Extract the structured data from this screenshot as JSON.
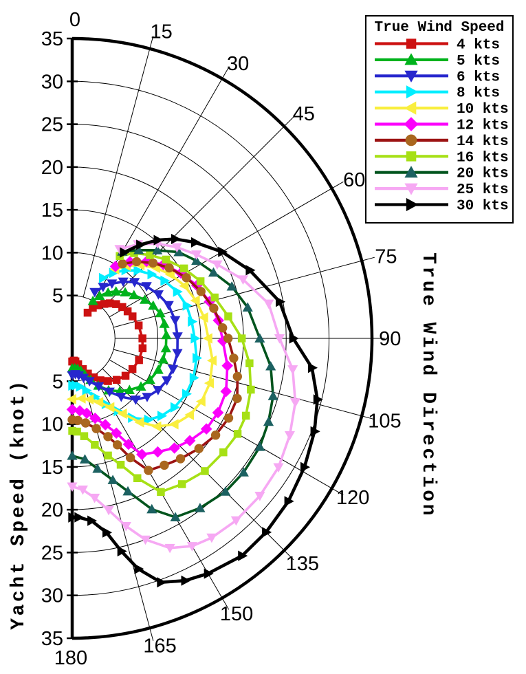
{
  "legend": {
    "title": "True Wind Speed",
    "position": "top-right"
  },
  "chart_data": {
    "type": "line",
    "subtype": "polar-half",
    "title": "",
    "angular_axis": {
      "label": "True Wind Direction",
      "unit": "deg",
      "range": [
        0,
        180
      ],
      "ticks": [
        0,
        15,
        30,
        45,
        60,
        75,
        90,
        105,
        120,
        135,
        150,
        165,
        180
      ]
    },
    "radial_axis": {
      "label": "Yacht Speed (knot)",
      "unit": "knot",
      "range": [
        0,
        35
      ],
      "ticks": [
        5,
        10,
        15,
        20,
        25,
        30,
        35
      ]
    },
    "grid": "on",
    "series": [
      {
        "label": "4 kts",
        "wind_kts": 4,
        "line_color": "#cc1111",
        "marker": "square",
        "marker_color": "#cc1111",
        "points": [
          [
            31,
            3.5
          ],
          [
            34,
            4.3
          ],
          [
            38,
            4.9
          ],
          [
            43,
            5.5
          ],
          [
            47,
            6.0
          ],
          [
            52,
            6.5
          ],
          [
            58,
            6.9
          ],
          [
            64,
            7.2
          ],
          [
            70,
            7.5
          ],
          [
            79,
            7.9
          ],
          [
            90,
            8.2
          ],
          [
            98,
            8.3
          ],
          [
            108,
            8.2
          ],
          [
            117,
            7.9
          ],
          [
            125,
            7.6
          ],
          [
            133,
            7.1
          ],
          [
            140,
            6.5
          ],
          [
            146,
            5.9
          ],
          [
            151,
            5.2
          ],
          [
            156,
            4.5
          ],
          [
            161,
            3.8
          ],
          [
            167,
            3.1
          ],
          [
            172,
            2.7
          ],
          [
            176,
            2.6
          ],
          [
            180,
            2.7
          ]
        ]
      },
      {
        "label": "5 kts",
        "wind_kts": 5,
        "line_color": "#00b21c",
        "marker": "triangle-up",
        "marker_color": "#00b21c",
        "points": [
          [
            29,
            5.0
          ],
          [
            33,
            5.9
          ],
          [
            38,
            6.8
          ],
          [
            43,
            7.5
          ],
          [
            49,
            8.2
          ],
          [
            55,
            8.8
          ],
          [
            62,
            9.6
          ],
          [
            68,
            10.2
          ],
          [
            74,
            10.7
          ],
          [
            81,
            10.9
          ],
          [
            88,
            11.0
          ],
          [
            96,
            11.0
          ],
          [
            103,
            10.9
          ],
          [
            110,
            10.7
          ],
          [
            118,
            10.3
          ],
          [
            125,
            9.8
          ],
          [
            132,
            9.0
          ],
          [
            138,
            8.3
          ],
          [
            145,
            7.4
          ],
          [
            151,
            6.3
          ],
          [
            156,
            5.3
          ],
          [
            161,
            4.4
          ],
          [
            165,
            3.9
          ],
          [
            170,
            3.6
          ],
          [
            175,
            3.5
          ],
          [
            180,
            3.5
          ]
        ]
      },
      {
        "label": "6 kts",
        "wind_kts": 6,
        "line_color": "#2727cd",
        "marker": "triangle-down",
        "marker_color": "#2727cd",
        "points": [
          [
            26,
            6.0
          ],
          [
            31,
            7.0
          ],
          [
            36,
            7.9
          ],
          [
            42,
            8.9
          ],
          [
            48,
            9.8
          ],
          [
            55,
            10.6
          ],
          [
            63,
            11.3
          ],
          [
            71,
            11.9
          ],
          [
            80,
            12.2
          ],
          [
            89,
            12.3
          ],
          [
            98,
            12.4
          ],
          [
            107,
            12.3
          ],
          [
            114,
            12.1
          ],
          [
            121,
            11.7
          ],
          [
            128,
            11.1
          ],
          [
            134,
            10.3
          ],
          [
            140,
            8.9
          ],
          [
            145,
            7.6
          ],
          [
            151,
            6.4
          ],
          [
            158,
            5.4
          ],
          [
            164,
            4.8
          ],
          [
            170,
            4.4
          ],
          [
            175,
            4.2
          ],
          [
            180,
            4.3
          ]
        ]
      },
      {
        "label": "8 kts",
        "wind_kts": 8,
        "line_color": "#00eeff",
        "marker": "triangle-right",
        "marker_color": "#00eeff",
        "points": [
          [
            27,
            7.9
          ],
          [
            32,
            9.0
          ],
          [
            38,
            10.1
          ],
          [
            44,
            11.0
          ],
          [
            51,
            11.9
          ],
          [
            58,
            12.7
          ],
          [
            66,
            13.4
          ],
          [
            74,
            13.9
          ],
          [
            82,
            14.1
          ],
          [
            90,
            14.3
          ],
          [
            99,
            14.7
          ],
          [
            108,
            14.9
          ],
          [
            116,
            14.8
          ],
          [
            124,
            14.4
          ],
          [
            131,
            13.8
          ],
          [
            137,
            13.0
          ],
          [
            143,
            11.6
          ],
          [
            148,
            10.0
          ],
          [
            153,
            8.6
          ],
          [
            159,
            7.3
          ],
          [
            165,
            6.3
          ],
          [
            171,
            5.7
          ],
          [
            176,
            5.5
          ],
          [
            180,
            5.5
          ]
        ]
      },
      {
        "label": "10 kts",
        "wind_kts": 10,
        "line_color": "#f9ee3e",
        "marker": "triangle-left",
        "marker_color": "#f9ee3e",
        "points": [
          [
            32,
            9.5
          ],
          [
            37,
            10.6
          ],
          [
            43,
            11.7
          ],
          [
            50,
            12.8
          ],
          [
            57,
            13.7
          ],
          [
            65,
            14.5
          ],
          [
            73,
            15.1
          ],
          [
            81,
            15.6
          ],
          [
            90,
            15.9
          ],
          [
            99,
            16.6
          ],
          [
            108,
            16.9
          ],
          [
            116,
            16.8
          ],
          [
            123,
            16.4
          ],
          [
            130,
            15.6
          ],
          [
            136,
            14.3
          ],
          [
            141,
            12.6
          ],
          [
            146,
            10.6
          ],
          [
            151,
            9.2
          ],
          [
            157,
            8.1
          ],
          [
            164,
            7.4
          ],
          [
            171,
            7.1
          ],
          [
            180,
            7.1
          ]
        ]
      },
      {
        "label": "12 kts",
        "wind_kts": 12,
        "line_color": "#fb00fb",
        "marker": "diamond",
        "marker_color": "#fb00fb",
        "points": [
          [
            31,
            9.8
          ],
          [
            37,
            11.2
          ],
          [
            44,
            12.5
          ],
          [
            51,
            13.7
          ],
          [
            59,
            14.8
          ],
          [
            67,
            15.8
          ],
          [
            75,
            16.6
          ],
          [
            83,
            17.2
          ],
          [
            91,
            17.6
          ],
          [
            100,
            18.4
          ],
          [
            109,
            19.0
          ],
          [
            117,
            19.1
          ],
          [
            124,
            18.9
          ],
          [
            131,
            18.2
          ],
          [
            137,
            17.5
          ],
          [
            143,
            16.6
          ],
          [
            149,
            15.8
          ],
          [
            152,
            14.0
          ],
          [
            155,
            12.2
          ],
          [
            159,
            10.8
          ],
          [
            164,
            9.7
          ],
          [
            169,
            8.9
          ],
          [
            174,
            8.5
          ],
          [
            180,
            8.3
          ]
        ]
      },
      {
        "label": "14 kts",
        "wind_kts": 14,
        "line_color": "#9c1313",
        "marker": "circle",
        "marker_color": "#a9671f",
        "points": [
          [
            34,
            10.5
          ],
          [
            40,
            11.7
          ],
          [
            47,
            12.9
          ],
          [
            54,
            14.0
          ],
          [
            62,
            15.1
          ],
          [
            70,
            16.0
          ],
          [
            78,
            16.9
          ],
          [
            86,
            17.6
          ],
          [
            90,
            18.2
          ],
          [
            97,
            19.0
          ],
          [
            103,
            19.8
          ],
          [
            110,
            20.5
          ],
          [
            117,
            20.5
          ],
          [
            124,
            20.2
          ],
          [
            131,
            19.6
          ],
          [
            138,
            18.9
          ],
          [
            144,
            18.3
          ],
          [
            150,
            17.8
          ],
          [
            154,
            15.5
          ],
          [
            157,
            13.5
          ],
          [
            160,
            12.2
          ],
          [
            165,
            10.9
          ],
          [
            171,
            10.0
          ],
          [
            176,
            9.6
          ],
          [
            180,
            9.5
          ]
        ]
      },
      {
        "label": "16 kts",
        "wind_kts": 16,
        "line_color": "#a6e015",
        "marker": "square",
        "marker_color": "#a6e015",
        "points": [
          [
            30,
            11.1
          ],
          [
            36,
            12.3
          ],
          [
            43,
            13.3
          ],
          [
            50,
            14.3
          ],
          [
            58,
            15.4
          ],
          [
            66,
            16.4
          ],
          [
            74,
            17.3
          ],
          [
            82,
            18.4
          ],
          [
            90,
            19.8
          ],
          [
            98,
            20.9
          ],
          [
            106,
            21.7
          ],
          [
            114,
            22.2
          ],
          [
            120,
            22.3
          ],
          [
            127,
            22.1
          ],
          [
            135,
            21.9
          ],
          [
            143,
            21.3
          ],
          [
            150,
            20.7
          ],
          [
            155,
            18.0
          ],
          [
            159,
            15.8
          ],
          [
            163,
            14.3
          ],
          [
            168,
            12.7
          ],
          [
            173,
            11.5
          ],
          [
            177,
            10.9
          ],
          [
            180,
            10.8
          ]
        ]
      },
      {
        "label": "20 kts",
        "wind_kts": 20,
        "line_color": "#01541d",
        "marker": "triangle-up",
        "marker_color": "#1c6161",
        "points": [
          [
            30,
            11.7
          ],
          [
            37,
            12.9
          ],
          [
            44,
            14.3
          ],
          [
            51,
            16.0
          ],
          [
            58,
            17.1
          ],
          [
            65,
            18.2
          ],
          [
            72,
            19.6
          ],
          [
            80,
            20.8
          ],
          [
            90,
            21.9
          ],
          [
            98,
            23.4
          ],
          [
            106,
            24.4
          ],
          [
            113,
            24.9
          ],
          [
            120,
            25.3
          ],
          [
            128,
            25.4
          ],
          [
            135,
            25.3
          ],
          [
            143,
            24.8
          ],
          [
            150,
            24.1
          ],
          [
            155,
            22.0
          ],
          [
            160,
            19.0
          ],
          [
            164,
            17.2
          ],
          [
            169,
            15.5
          ],
          [
            174,
            14.2
          ],
          [
            180,
            13.7
          ]
        ]
      },
      {
        "label": "25 kts",
        "wind_kts": 25,
        "line_color": "#f6a8f3",
        "marker": "triangle-down",
        "marker_color": "#f6a8f3",
        "points": [
          [
            28,
            11.8
          ],
          [
            35,
            13.4
          ],
          [
            42,
            14.9
          ],
          [
            49,
            16.2
          ],
          [
            56,
            17.5
          ],
          [
            63,
            19.0
          ],
          [
            71,
            21.1
          ],
          [
            80,
            23.3
          ],
          [
            90,
            24.2
          ],
          [
            98,
            26.0
          ],
          [
            106,
            27.1
          ],
          [
            114,
            27.8
          ],
          [
            122,
            28.4
          ],
          [
            130,
            28.6
          ],
          [
            138,
            28.6
          ],
          [
            145,
            28.4
          ],
          [
            150,
            28.0
          ],
          [
            155,
            27.0
          ],
          [
            160,
            25.0
          ],
          [
            164,
            22.8
          ],
          [
            168,
            20.5
          ],
          [
            172,
            18.8
          ],
          [
            176,
            17.7
          ],
          [
            180,
            17.3
          ]
        ]
      },
      {
        "label": "30 kts",
        "wind_kts": 30,
        "line_color": "#000000",
        "marker": "triangle-right",
        "marker_color": "#000000",
        "points": [
          [
            31,
            11.7
          ],
          [
            36,
            13.5
          ],
          [
            41,
            15.2
          ],
          [
            46,
            16.7
          ],
          [
            52,
            18.2
          ],
          [
            60,
            20.2
          ],
          [
            69,
            22.2
          ],
          [
            80,
            24.6
          ],
          [
            90,
            25.8
          ],
          [
            97,
            28.2
          ],
          [
            104,
            29.5
          ],
          [
            111,
            30.3
          ],
          [
            119,
            31.0
          ],
          [
            127,
            31.6
          ],
          [
            135,
            32.0
          ],
          [
            142,
            32.2
          ],
          [
            150,
            31.7
          ],
          [
            155,
            31.2
          ],
          [
            160,
            30.3
          ],
          [
            164,
            28.0
          ],
          [
            167,
            25.5
          ],
          [
            170,
            23.0
          ],
          [
            174,
            21.4
          ],
          [
            178,
            20.9
          ],
          [
            180,
            20.9
          ]
        ]
      }
    ]
  }
}
